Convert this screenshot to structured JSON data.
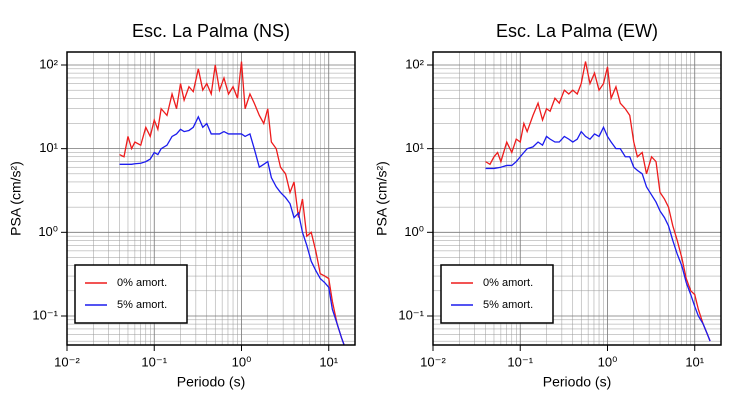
{
  "chart_data": [
    {
      "type": "line",
      "title": "Esc. La Palma (NS)",
      "x_label": "Periodo (s)",
      "y_label": "PSA (cm/s²)",
      "log_x": true,
      "log_y": true,
      "grid": true,
      "legend": "lower left",
      "xlim": [
        0.01,
        20
      ],
      "ylim": [
        0.045,
        143
      ],
      "xticks": [
        {
          "value": 0.01,
          "label": "10⁻²"
        },
        {
          "value": 0.1,
          "label": "10⁻¹"
        },
        {
          "value": 1,
          "label": "10⁰"
        },
        {
          "value": 10,
          "label": "10¹"
        }
      ],
      "yticks": [
        {
          "value": 0.1,
          "label": "10⁻¹"
        },
        {
          "value": 1,
          "label": "10⁰"
        },
        {
          "value": 10,
          "label": "10¹"
        },
        {
          "value": 100,
          "label": "10²"
        }
      ],
      "x": [
        0.04,
        0.045,
        0.05,
        0.055,
        0.06,
        0.07,
        0.08,
        0.09,
        0.1,
        0.11,
        0.12,
        0.14,
        0.16,
        0.18,
        0.2,
        0.22,
        0.25,
        0.28,
        0.32,
        0.36,
        0.4,
        0.45,
        0.5,
        0.56,
        0.63,
        0.71,
        0.8,
        0.9,
        1.0,
        1.1,
        1.25,
        1.4,
        1.6,
        1.8,
        2.0,
        2.2,
        2.5,
        2.8,
        3.2,
        3.6,
        4.0,
        4.5,
        5.0,
        5.6,
        6.3,
        7.1,
        8.0,
        9.0,
        10,
        11,
        12.5,
        14,
        15
      ],
      "series": [
        {
          "name": "0% amort.",
          "color": "#ee1c1c",
          "values": [
            8.5,
            8,
            14,
            10,
            12,
            11,
            18,
            14,
            22,
            17,
            30,
            25,
            45,
            30,
            60,
            38,
            55,
            48,
            90,
            50,
            60,
            45,
            100,
            50,
            70,
            45,
            55,
            40,
            110,
            30,
            45,
            35,
            25,
            20,
            30,
            12,
            10,
            6,
            5,
            3,
            4,
            1.5,
            2.5,
            0.9,
            1.0,
            0.6,
            0.32,
            0.3,
            0.28,
            0.15,
            0.08,
            0.055,
            0.045
          ]
        },
        {
          "name": "5% amort.",
          "color": "#1c1cee",
          "values": [
            6.5,
            6.5,
            6.5,
            6.5,
            6.6,
            6.7,
            7,
            7.5,
            9,
            8.5,
            10,
            11,
            14,
            15,
            17,
            16,
            16.5,
            18,
            24,
            18,
            20,
            15,
            15,
            15,
            16,
            15,
            15,
            15,
            15,
            14,
            15,
            10,
            6,
            6.5,
            7,
            4.5,
            3.5,
            3,
            2.6,
            2.2,
            1.5,
            1.7,
            1.0,
            0.7,
            0.45,
            0.35,
            0.28,
            0.25,
            0.22,
            0.12,
            0.08,
            0.055,
            0.045
          ]
        }
      ]
    },
    {
      "type": "line",
      "title": "Esc. La Palma (EW)",
      "x_label": "Periodo (s)",
      "y_label": "PSA (cm/s²)",
      "log_x": true,
      "log_y": true,
      "grid": true,
      "legend": "lower left",
      "xlim": [
        0.01,
        20
      ],
      "ylim": [
        0.045,
        143
      ],
      "xticks": [
        {
          "value": 0.01,
          "label": "10⁻²"
        },
        {
          "value": 0.1,
          "label": "10⁻¹"
        },
        {
          "value": 1,
          "label": "10⁰"
        },
        {
          "value": 10,
          "label": "10¹"
        }
      ],
      "yticks": [
        {
          "value": 0.1,
          "label": "10⁻¹"
        },
        {
          "value": 1,
          "label": "10⁰"
        },
        {
          "value": 10,
          "label": "10¹"
        },
        {
          "value": 100,
          "label": "10²"
        }
      ],
      "x": [
        0.04,
        0.045,
        0.05,
        0.055,
        0.06,
        0.07,
        0.08,
        0.09,
        0.1,
        0.11,
        0.12,
        0.14,
        0.16,
        0.18,
        0.2,
        0.22,
        0.25,
        0.28,
        0.32,
        0.36,
        0.4,
        0.45,
        0.5,
        0.56,
        0.63,
        0.71,
        0.8,
        0.9,
        1.0,
        1.1,
        1.25,
        1.4,
        1.6,
        1.8,
        2.0,
        2.2,
        2.5,
        2.8,
        3.2,
        3.6,
        4.0,
        4.5,
        5.0,
        5.6,
        6.3,
        7.1,
        8.0,
        9.0,
        10,
        11,
        12.5,
        14,
        15
      ],
      "series": [
        {
          "name": "0% amort.",
          "color": "#ee1c1c",
          "values": [
            7,
            6.5,
            8,
            9,
            7,
            12,
            9,
            13,
            12,
            20,
            16,
            25,
            35,
            22,
            30,
            28,
            40,
            35,
            50,
            45,
            50,
            45,
            60,
            110,
            60,
            80,
            50,
            60,
            95,
            40,
            55,
            35,
            30,
            25,
            12,
            8,
            9,
            5,
            8,
            7,
            3,
            2.5,
            2.0,
            1.2,
            0.8,
            0.5,
            0.28,
            0.2,
            0.18,
            0.12,
            0.08,
            0.06,
            0.05
          ]
        },
        {
          "name": "5% amort.",
          "color": "#1c1cee",
          "values": [
            5.8,
            5.8,
            5.8,
            5.9,
            6,
            6.3,
            6.3,
            7,
            8,
            9,
            10,
            10.5,
            12,
            11,
            14,
            13,
            12,
            12,
            14,
            13,
            12,
            13,
            16,
            14,
            13,
            15,
            14,
            18,
            14,
            12,
            10,
            10,
            8,
            8,
            6,
            5.5,
            5,
            3.5,
            2.8,
            2.3,
            1.8,
            1.5,
            1.2,
            0.8,
            0.55,
            0.4,
            0.25,
            0.18,
            0.13,
            0.1,
            0.08,
            0.06,
            0.05
          ]
        }
      ]
    }
  ]
}
